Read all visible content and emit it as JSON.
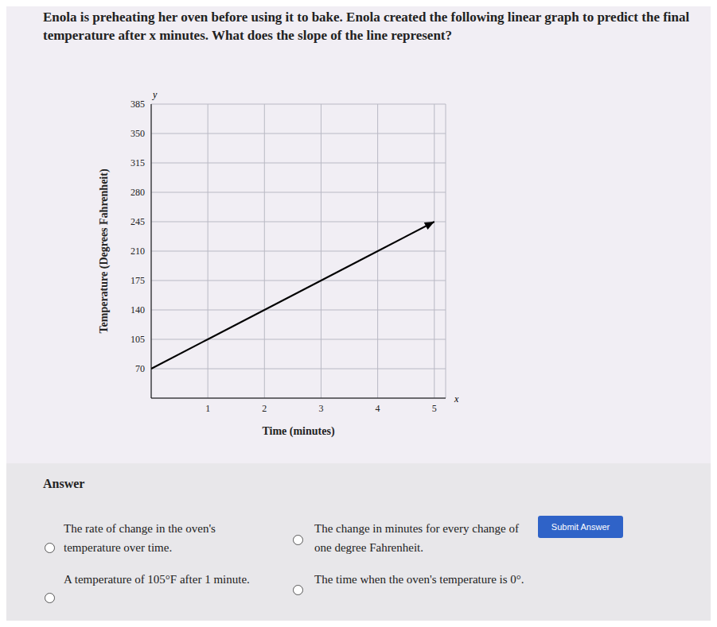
{
  "question": "Enola is preheating her oven before using it to bake. Enola created the following linear graph to predict the final temperature after x minutes. What does the slope of the line represent?",
  "chart_data": {
    "type": "line",
    "x_label": "Time (minutes)",
    "y_label": "Temperature (Degrees Fahrenheit)",
    "axis_symbols": {
      "x": "x",
      "y": "y"
    },
    "x": [
      0,
      1,
      2,
      3,
      4,
      5
    ],
    "values": [
      70,
      105,
      140,
      175,
      210,
      245
    ],
    "color": "#000000",
    "marker": "arrow",
    "xlim": [
      0,
      5.2
    ],
    "xticks": [
      1,
      2,
      3,
      4,
      5
    ],
    "ylim": [
      35,
      385
    ],
    "yticks": [
      70,
      105,
      140,
      175,
      210,
      245,
      280,
      315,
      350,
      385
    ],
    "grid": true
  },
  "answer": {
    "heading": "Answer",
    "options": [
      "The rate of change in the oven's temperature over time.",
      "The change in minutes for every change of one degree Fahrenheit.",
      "A temperature of 105°F after 1 minute.",
      "The time when the oven's temperature is 0°."
    ],
    "button": "Submit Answer"
  }
}
